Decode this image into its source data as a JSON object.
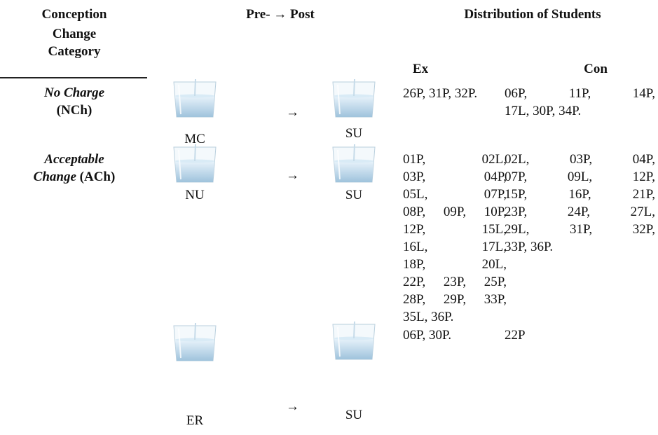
{
  "table": {
    "header": {
      "category": [
        "Conception",
        "Change",
        "Category"
      ],
      "pre_post": "Pre- → Post",
      "distribution": "Distribution of Students",
      "ex": "Ex",
      "con": "Con"
    },
    "rows": [
      {
        "category": [
          "No Charge",
          "(NCh)"
        ],
        "pre": "MC",
        "arrow": "→",
        "post": "SU",
        "ex": [
          "26P, 31P, 32P."
        ],
        "con": [
          "06P, 11P, 14P,",
          "17L, 30P, 34P."
        ]
      },
      {
        "category": [
          "Acceptable",
          "Change",
          "(ACh)"
        ],
        "pre": "NU",
        "arrow": "→",
        "post": "SU",
        "ex": [
          "01P, 02L,",
          "03P, 04P,",
          "05L, 07P,",
          "08P, 09P, 10P,",
          "12P, 15L,",
          "16L, 17L,",
          "18P, 20L,",
          "22P, 23P, 25P,",
          "28P, 29P, 33P,",
          "35L, 36P."
        ],
        "con": [
          "02L, 03P, 04P,",
          "07P, 09L, 12P,",
          "15P, 16P, 21P,",
          "23P, 24P, 27L,",
          "29L, 31P, 32P,",
          "33P, 36P."
        ]
      },
      {
        "pre": "ER",
        "arrow": "→",
        "post": "SU",
        "ex": [
          "06P, 30P."
        ],
        "con": [
          "22P"
        ]
      }
    ]
  }
}
